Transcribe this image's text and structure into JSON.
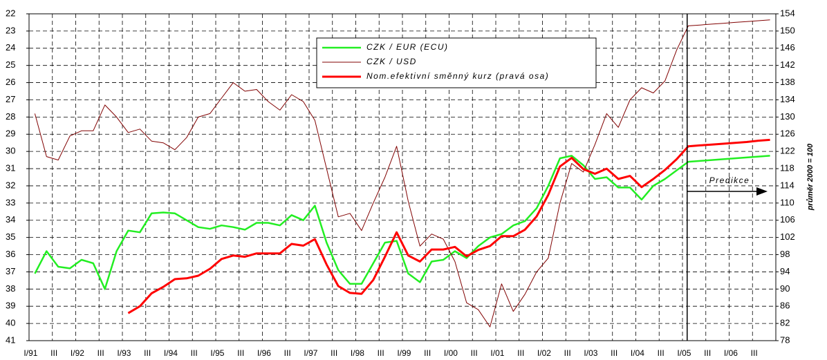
{
  "chart_data": {
    "type": "line",
    "categories": [
      "I/91",
      null,
      "III",
      null,
      "I/92",
      null,
      "III",
      null,
      "I/93",
      null,
      "III",
      null,
      "I/94",
      null,
      "III",
      null,
      "I/95",
      null,
      "III",
      null,
      "I/96",
      null,
      "III",
      null,
      "I/97",
      null,
      "III",
      null,
      "I/98",
      null,
      "III",
      null,
      "I/99",
      null,
      "III",
      null,
      "I/00",
      null,
      "III",
      null,
      "I/01",
      null,
      "III",
      null,
      "I/02",
      null,
      "III",
      null,
      "I/03",
      null,
      "III",
      null,
      "I/04",
      null,
      "III",
      null,
      "I/05",
      null,
      "III",
      null,
      "I/06",
      null,
      "III",
      null
    ],
    "series": [
      {
        "name": "CZK / EUR (ECU)",
        "color": "#22ee22",
        "values": [
          37.1,
          35.8,
          36.7,
          36.8,
          36.3,
          36.5,
          38.0,
          35.8,
          34.6,
          34.7,
          33.6,
          33.55,
          33.6,
          34.0,
          34.4,
          34.5,
          34.3,
          34.4,
          34.55,
          34.15,
          34.15,
          34.3,
          33.7,
          34.0,
          33.15,
          35.3,
          36.9,
          37.7,
          37.7,
          36.5,
          35.3,
          35.2,
          37.1,
          37.6,
          36.4,
          36.3,
          35.8,
          36.2,
          35.5,
          35.0,
          34.8,
          34.3,
          34.05,
          33.3,
          32.0,
          30.4,
          30.25,
          30.8,
          31.6,
          31.5,
          32.1,
          32.1,
          32.8,
          32.0,
          31.6,
          31.1,
          30.6,
          30.55,
          30.5,
          30.45,
          30.4,
          30.35,
          30.3,
          30.25
        ]
      },
      {
        "name": "CZK / USD",
        "color": "#800000",
        "values": [
          27.8,
          30.3,
          30.5,
          29.1,
          28.8,
          28.8,
          27.3,
          28.0,
          28.9,
          28.7,
          29.4,
          29.5,
          29.9,
          29.2,
          28.0,
          27.8,
          26.9,
          26.0,
          26.5,
          26.4,
          27.1,
          27.6,
          26.7,
          27.1,
          28.2,
          31.0,
          33.8,
          33.6,
          34.6,
          33.0,
          31.5,
          29.7,
          32.9,
          35.5,
          34.8,
          35.1,
          36.4,
          38.8,
          39.2,
          40.2,
          37.7,
          39.3,
          38.3,
          37.0,
          36.2,
          33.0,
          30.7,
          31.2,
          29.6,
          27.8,
          28.6,
          27.0,
          26.3,
          26.6,
          25.9,
          24.1,
          22.7,
          22.65,
          22.6,
          22.55,
          22.5,
          22.45,
          22.4,
          22.35
        ]
      },
      {
        "name": "Nom.efektivní směnný kurz (pravá osa)",
        "color": "#ff0000",
        "axis": "y2",
        "values": [
          null,
          null,
          null,
          null,
          null,
          null,
          null,
          null,
          84.4,
          86.0,
          89.0,
          90.5,
          92.3,
          92.5,
          93.1,
          94.7,
          97.0,
          97.8,
          97.5,
          98.3,
          98.3,
          98.3,
          100.5,
          100.1,
          101.6,
          95.7,
          90.7,
          89.1,
          88.9,
          92.1,
          97.5,
          103.2,
          97.8,
          96.4,
          99.2,
          99.2,
          99.8,
          97.6,
          99.1,
          100.0,
          102.3,
          102.3,
          103.8,
          106.9,
          111.9,
          118.5,
          120.5,
          117.9,
          116.8,
          118.0,
          115.6,
          116.3,
          113.7,
          115.6,
          117.7,
          120.2,
          123.2,
          123.4,
          123.6,
          123.8,
          124.0,
          124.2,
          124.5,
          124.7
        ]
      }
    ],
    "ylim": [
      41,
      22
    ],
    "yticks": [
      22,
      23,
      24,
      25,
      26,
      27,
      28,
      29,
      30,
      31,
      32,
      33,
      34,
      35,
      36,
      37,
      38,
      39,
      40,
      41
    ],
    "y2lim": [
      78,
      154
    ],
    "y2ticks": [
      154,
      150,
      146,
      142,
      138,
      134,
      130,
      126,
      122,
      118,
      114,
      110,
      106,
      102,
      98,
      94,
      90,
      86,
      82,
      78
    ],
    "y2label": "průměr 2000 = 100",
    "annotation": "Predikce",
    "grid": true
  }
}
